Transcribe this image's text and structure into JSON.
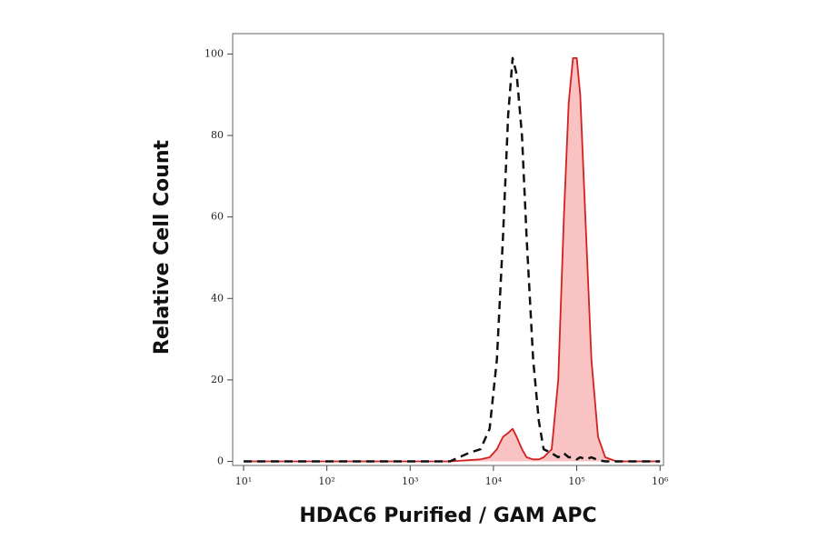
{
  "chart_data": {
    "type": "line",
    "xlabel": "HDAC6 Purified / GAM APC",
    "ylabel": "Relative Cell Count",
    "xscale": "log",
    "xlim": [
      7.4,
      1100000
    ],
    "ylim": [
      -1,
      105
    ],
    "xticks": [
      {
        "value": 10,
        "label": "10¹"
      },
      {
        "value": 100,
        "label": "10²"
      },
      {
        "value": 1000,
        "label": "10³"
      },
      {
        "value": 10000,
        "label": "10⁴"
      },
      {
        "value": 100000,
        "label": "10⁵"
      },
      {
        "value": 1000000,
        "label": "10⁶"
      }
    ],
    "yticks": [
      0,
      20,
      40,
      60,
      80,
      100
    ],
    "x": [
      10,
      100,
      1000,
      3000,
      5000,
      7000,
      9000,
      11000,
      13000,
      15000,
      17000,
      19000,
      22000,
      25000,
      30000,
      35000,
      40000,
      50000,
      60000,
      70000,
      80000,
      90000,
      100000,
      110000,
      130000,
      150000,
      180000,
      220000,
      300000,
      1000000
    ],
    "series": [
      {
        "color": "#111111",
        "linestyle": "dashed",
        "values": [
          0,
          0,
          0,
          0,
          2,
          3,
          8,
          25,
          55,
          85,
          99,
          95,
          80,
          55,
          25,
          10,
          3,
          2,
          1,
          2,
          1,
          1,
          0.5,
          1,
          0.5,
          1,
          0.3,
          0,
          0,
          0
        ]
      },
      {
        "color": "#d42020",
        "linestyle": "solid",
        "fill": "#f9c3c3",
        "values": [
          0,
          0,
          0,
          0,
          0.3,
          0.5,
          1,
          3,
          6,
          7,
          8,
          6,
          3,
          1,
          0.5,
          0.5,
          1,
          3,
          20,
          60,
          88,
          99,
          99,
          90,
          55,
          25,
          6,
          1,
          0,
          0
        ]
      }
    ]
  }
}
